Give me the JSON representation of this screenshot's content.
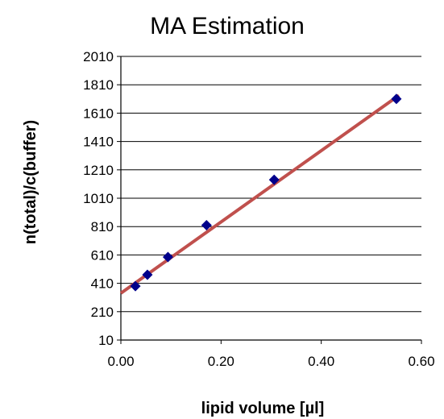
{
  "chart_data": {
    "type": "scatter",
    "title": "MA Estimation",
    "xlabel": "lipid volume [µl]",
    "ylabel": "n(total)/c(buffer)",
    "xlim": [
      0,
      0.6
    ],
    "ylim": [
      10,
      2010
    ],
    "x_ticks": [
      "0.00",
      "0.20",
      "0.40",
      "0.60"
    ],
    "y_ticks": [
      "10",
      "210",
      "410",
      "610",
      "810",
      "1010",
      "1210",
      "1410",
      "1610",
      "1810",
      "2010"
    ],
    "grid": "horizontal",
    "legend": "none",
    "series": [
      {
        "type": "scatter",
        "marker": "diamond",
        "color": "#00008b",
        "points": [
          {
            "x": 0.029,
            "y": 390
          },
          {
            "x": 0.053,
            "y": 470
          },
          {
            "x": 0.094,
            "y": 595
          },
          {
            "x": 0.171,
            "y": 820
          },
          {
            "x": 0.306,
            "y": 1140
          },
          {
            "x": 0.55,
            "y": 1710
          }
        ]
      },
      {
        "type": "line",
        "color": "#c0504d",
        "points": [
          {
            "x": 0.0,
            "y": 340
          },
          {
            "x": 0.555,
            "y": 1735
          }
        ]
      }
    ]
  }
}
